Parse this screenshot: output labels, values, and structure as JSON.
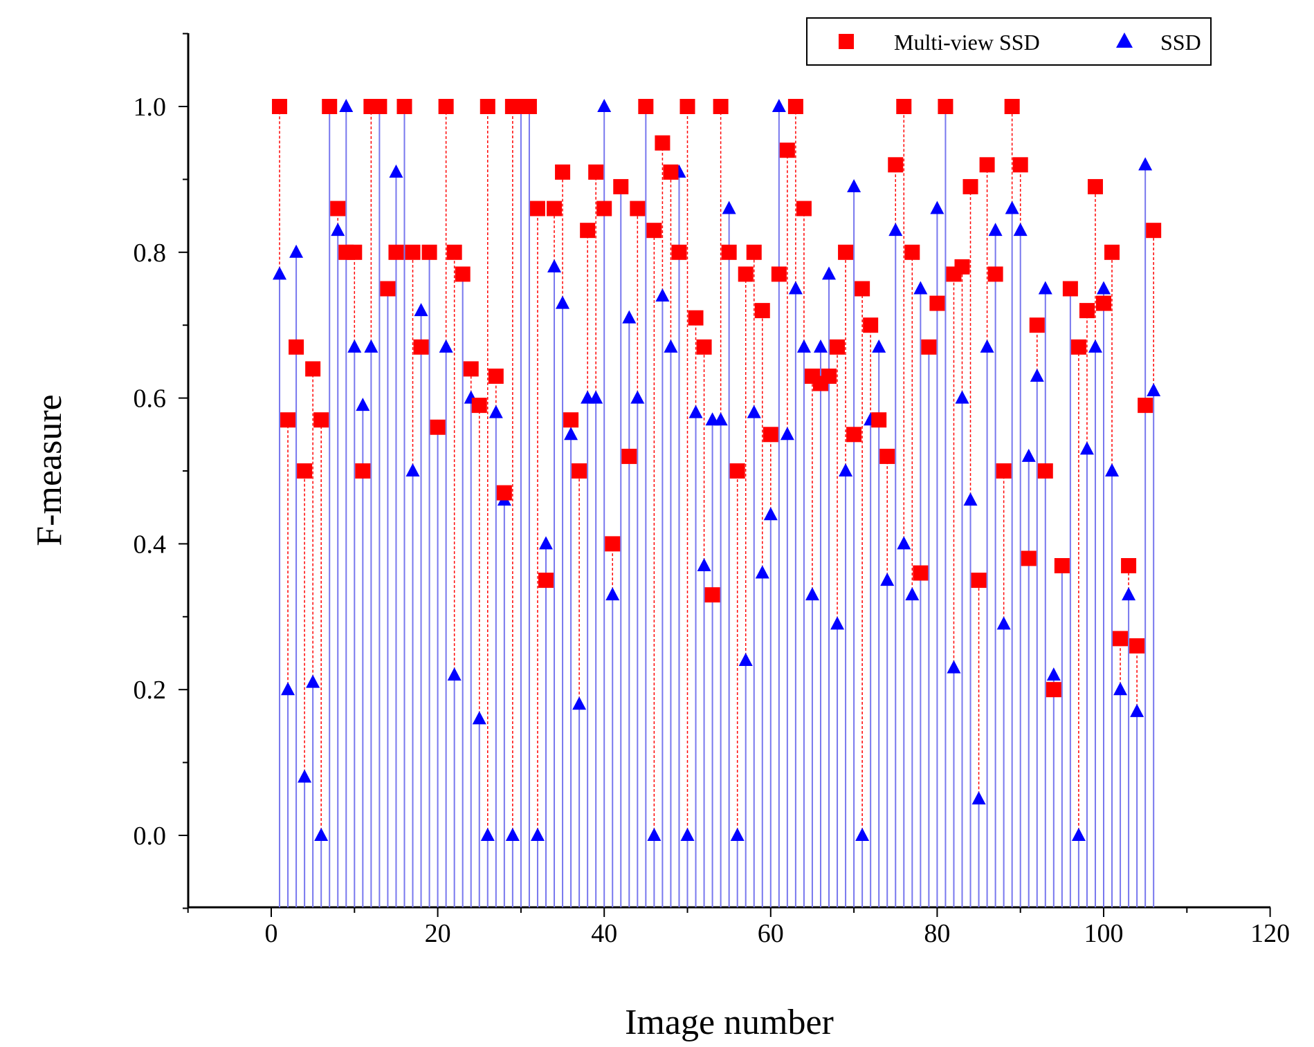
{
  "chart_data": {
    "type": "scatter",
    "title": "",
    "xlabel": "Image number",
    "ylabel": "F-measure",
    "xlim": [
      -10,
      120
    ],
    "ylim": [
      -0.1,
      1.1
    ],
    "x_ticks": [
      "0",
      "20",
      "40",
      "60",
      "80",
      "100",
      "120"
    ],
    "y_ticks": [
      "0.0",
      "0.2",
      "0.4",
      "0.6",
      "0.8",
      "1.0"
    ],
    "grid": false,
    "legend_position": "top-right",
    "series": [
      {
        "name": "Multi-view SSD",
        "marker": "square",
        "color": "#ff0000",
        "drop_lines": "dashed",
        "values": [
          1.0,
          0.57,
          0.67,
          0.5,
          0.64,
          0.57,
          1.0,
          0.86,
          0.8,
          0.8,
          0.5,
          1.0,
          1.0,
          0.75,
          0.8,
          1.0,
          0.8,
          0.67,
          0.8,
          0.56,
          1.0,
          0.8,
          0.77,
          0.64,
          0.59,
          1.0,
          0.63,
          0.47,
          1.0,
          1.0,
          1.0,
          0.86,
          0.35,
          0.86,
          0.91,
          0.57,
          0.5,
          0.83,
          0.91,
          0.86,
          0.4,
          0.89,
          0.52,
          0.86,
          1.0,
          0.83,
          0.95,
          0.91,
          0.8,
          1.0,
          0.71,
          0.67,
          0.33,
          1.0,
          0.8,
          0.5,
          0.77,
          0.8,
          0.72,
          0.55,
          0.77,
          0.94,
          1.0,
          0.86,
          0.63,
          0.62,
          0.63,
          0.67,
          0.8,
          0.55,
          0.75,
          0.7,
          0.57,
          0.52,
          0.92,
          1.0,
          0.8,
          0.36,
          0.67,
          0.73,
          1.0,
          0.77,
          0.78,
          0.89,
          0.35,
          0.92,
          0.77,
          0.5,
          1.0,
          0.92,
          0.38,
          0.7,
          0.5,
          0.2,
          0.37,
          0.75,
          0.67,
          0.72,
          0.89,
          0.73,
          0.8,
          0.27,
          0.37,
          0.26,
          0.59,
          0.83
        ]
      },
      {
        "name": "SSD",
        "marker": "triangle",
        "color": "#0000ff",
        "drop_lines": "solid",
        "values": [
          0.77,
          0.2,
          0.8,
          0.08,
          0.21,
          0.0,
          1.0,
          0.83,
          1.0,
          0.67,
          0.59,
          0.67,
          1.0,
          0.75,
          0.91,
          1.0,
          0.5,
          0.72,
          0.8,
          0.56,
          0.67,
          0.22,
          0.77,
          0.6,
          0.16,
          0.0,
          0.58,
          0.46,
          0.0,
          1.0,
          1.0,
          0.0,
          0.4,
          0.78,
          0.73,
          0.55,
          0.18,
          0.6,
          0.6,
          1.0,
          0.33,
          0.89,
          0.71,
          0.6,
          1.0,
          0.0,
          0.74,
          0.67,
          0.91,
          0.0,
          0.58,
          0.37,
          0.57,
          0.57,
          0.86,
          0.0,
          0.24,
          0.58,
          0.36,
          0.44,
          1.0,
          0.55,
          0.75,
          0.67,
          0.33,
          0.67,
          0.77,
          0.29,
          0.5,
          0.89,
          0.0,
          0.57,
          0.67,
          0.35,
          0.83,
          0.4,
          0.33,
          0.75,
          0.67,
          0.86,
          1.0,
          0.23,
          0.6,
          0.46,
          0.05,
          0.67,
          0.83,
          0.29,
          0.86,
          0.83,
          0.52,
          0.63,
          0.75,
          0.22,
          0.37,
          0.75,
          0.0,
          0.53,
          0.67,
          0.75,
          0.5,
          0.2,
          0.33,
          0.17,
          0.92,
          0.61
        ]
      }
    ]
  },
  "colors": {
    "multi_view_ssd": "#ff0000",
    "ssd": "#0000ff",
    "ssd_stem": "#7777ee"
  }
}
